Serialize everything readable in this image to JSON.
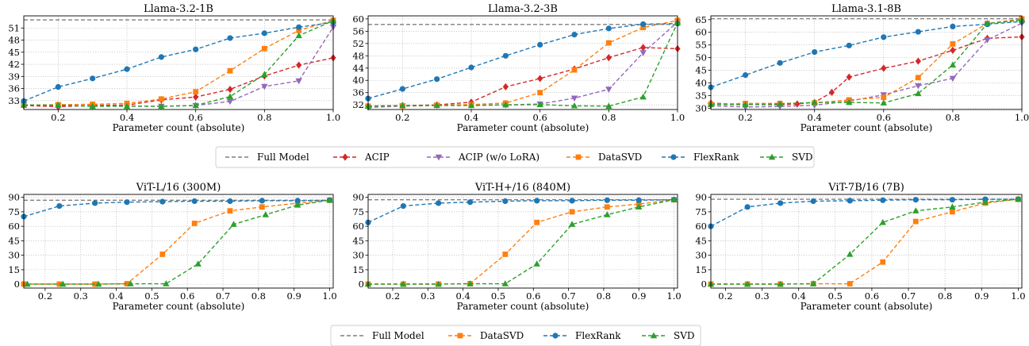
{
  "colors": {
    "full_model": "#7f7f7f",
    "acip": "#d62728",
    "acip_wo_lora": "#9467bd",
    "datasvd": "#ff7f0e",
    "flexrank": "#1f77b4",
    "svd": "#2ca02c"
  },
  "legends": [
    {
      "position": "below-top-row",
      "entries": [
        {
          "key": "full_model",
          "label": "Full Model"
        },
        {
          "key": "acip",
          "label": "ACIP"
        },
        {
          "key": "acip_wo_lora",
          "label": "ACIP (w/o LoRA)"
        },
        {
          "key": "datasvd",
          "label": "DataSVD"
        },
        {
          "key": "flexrank",
          "label": "FlexRank"
        },
        {
          "key": "svd",
          "label": "SVD"
        }
      ]
    },
    {
      "position": "below-bottom-row",
      "entries": [
        {
          "key": "full_model",
          "label": "Full Model"
        },
        {
          "key": "datasvd",
          "label": "DataSVD"
        },
        {
          "key": "flexrank",
          "label": "FlexRank"
        },
        {
          "key": "svd",
          "label": "SVD"
        }
      ]
    }
  ],
  "chart_data": [
    {
      "type": "line",
      "title": "Llama-3.2-1B",
      "xlabel": "Parameter count (absolute)",
      "ylabel": "",
      "xlim": [
        0.1,
        1.0
      ],
      "ylim": [
        30.8,
        54
      ],
      "grid": true,
      "xticks": [
        0.2,
        0.4,
        0.6,
        0.8,
        1.0
      ],
      "xtick_labels": [
        "0.2",
        "0.4",
        "0.6",
        "0.8",
        "1.0"
      ],
      "yticks": [
        33,
        36,
        39,
        42,
        45,
        48,
        51
      ],
      "ytick_labels": [
        "33",
        "36",
        "39",
        "42",
        "45",
        "48",
        "51"
      ],
      "full_model": 53.0,
      "series": [
        {
          "key": "acip",
          "name": "ACIP",
          "x": [
            0.1,
            0.2,
            0.3,
            0.4,
            0.5,
            0.6,
            0.7,
            0.8,
            0.9,
            1.0
          ],
          "y": [
            31.8,
            31.5,
            31.8,
            31.9,
            33.2,
            33.9,
            35.8,
            39.1,
            41.8,
            43.6
          ]
        },
        {
          "key": "acip_wo_lora",
          "name": "ACIP (w/o LoRA)",
          "x": [
            0.1,
            0.2,
            0.3,
            0.4,
            0.5,
            0.6,
            0.7,
            0.8,
            0.9,
            1.0
          ],
          "y": [
            32.0,
            31.8,
            31.6,
            31.7,
            31.6,
            31.8,
            32.8,
            36.5,
            37.9,
            51.2
          ]
        },
        {
          "key": "datasvd",
          "name": "DataSVD",
          "x": [
            0.1,
            0.2,
            0.3,
            0.4,
            0.5,
            0.6,
            0.7,
            0.8,
            0.9,
            1.0
          ],
          "y": [
            31.9,
            32.0,
            32.1,
            32.3,
            33.4,
            35.2,
            40.4,
            45.9,
            50.4,
            52.9
          ]
        },
        {
          "key": "flexrank",
          "name": "FlexRank",
          "x": [
            0.1,
            0.2,
            0.3,
            0.4,
            0.5,
            0.6,
            0.7,
            0.8,
            0.9,
            1.0
          ],
          "y": [
            32.9,
            36.4,
            38.5,
            40.8,
            43.8,
            45.7,
            48.5,
            49.7,
            51.2,
            52.4
          ]
        },
        {
          "key": "svd",
          "name": "SVD",
          "x": [
            0.1,
            0.2,
            0.3,
            0.4,
            0.5,
            0.6,
            0.7,
            0.8,
            0.9,
            1.0
          ],
          "y": [
            31.9,
            31.9,
            31.6,
            31.6,
            31.6,
            31.8,
            34.0,
            39.5,
            49.1,
            52.8
          ]
        }
      ]
    },
    {
      "type": "line",
      "title": "Llama-3.2-3B",
      "xlabel": "Parameter count (absolute)",
      "ylabel": "",
      "xlim": [
        0.1,
        1.0
      ],
      "ylim": [
        30.5,
        61
      ],
      "grid": true,
      "xticks": [
        0.2,
        0.4,
        0.6,
        0.8,
        1.0
      ],
      "xtick_labels": [
        "0.2",
        "0.4",
        "0.6",
        "0.8",
        "1.0"
      ],
      "yticks": [
        32,
        36,
        40,
        44,
        48,
        52,
        56,
        60
      ],
      "ytick_labels": [
        "32",
        "36",
        "40",
        "44",
        "48",
        "52",
        "56",
        "60"
      ],
      "full_model": 58.2,
      "series": [
        {
          "key": "acip",
          "name": "ACIP",
          "x": [
            0.1,
            0.2,
            0.3,
            0.4,
            0.5,
            0.6,
            0.7,
            0.8,
            0.9,
            1.0
          ],
          "y": [
            31.5,
            31.8,
            32.0,
            32.9,
            37.9,
            40.6,
            43.7,
            47.4,
            50.7,
            50.3
          ]
        },
        {
          "key": "acip_wo_lora",
          "name": "ACIP (w/o LoRA)",
          "x": [
            0.1,
            0.2,
            0.3,
            0.4,
            0.5,
            0.6,
            0.7,
            0.8,
            0.9,
            1.0
          ],
          "y": [
            31.2,
            31.6,
            31.8,
            31.9,
            32.0,
            32.3,
            34.2,
            37.1,
            49.0,
            59.0
          ]
        },
        {
          "key": "datasvd",
          "name": "DataSVD",
          "x": [
            0.1,
            0.2,
            0.3,
            0.4,
            0.5,
            0.6,
            0.7,
            0.8,
            0.9,
            1.0
          ],
          "y": [
            31.6,
            31.7,
            31.9,
            32.1,
            32.6,
            36.0,
            43.4,
            52.2,
            57.2,
            59.5
          ]
        },
        {
          "key": "flexrank",
          "name": "FlexRank",
          "x": [
            0.1,
            0.2,
            0.3,
            0.4,
            0.5,
            0.6,
            0.7,
            0.8,
            0.9,
            1.0
          ],
          "y": [
            34.1,
            37.2,
            40.4,
            44.2,
            48.0,
            51.6,
            54.9,
            56.9,
            58.3,
            58.5
          ]
        },
        {
          "key": "svd",
          "name": "SVD",
          "x": [
            0.1,
            0.2,
            0.3,
            0.4,
            0.5,
            0.6,
            0.7,
            0.8,
            0.9,
            1.0
          ],
          "y": [
            31.6,
            31.8,
            31.8,
            31.8,
            32.0,
            32.1,
            31.7,
            31.6,
            34.6,
            58.8
          ]
        }
      ]
    },
    {
      "type": "line",
      "title": "Llama-3.1-8B",
      "xlabel": "Parameter count (absolute)",
      "ylabel": "",
      "xlim": [
        0.1,
        1.0
      ],
      "ylim": [
        29.5,
        66.5
      ],
      "grid": true,
      "xticks": [
        0.2,
        0.4,
        0.6,
        0.8,
        1.0
      ],
      "xtick_labels": [
        "0.2",
        "0.4",
        "0.6",
        "0.8",
        "1.0"
      ],
      "yticks": [
        30,
        35,
        40,
        45,
        50,
        55,
        60,
        65
      ],
      "ytick_labels": [
        "30",
        "35",
        "40",
        "45",
        "50",
        "55",
        "60",
        "65"
      ],
      "full_model": 65.4,
      "series": [
        {
          "key": "acip",
          "name": "ACIP",
          "x": [
            0.1,
            0.2,
            0.3,
            0.35,
            0.4,
            0.45,
            0.5,
            0.6,
            0.7,
            0.8,
            0.9,
            1.0
          ],
          "y": [
            32.0,
            31.5,
            31.4,
            31.7,
            32.3,
            36.3,
            42.3,
            45.8,
            48.6,
            52.9,
            57.6,
            58.2
          ]
        },
        {
          "key": "acip_wo_lora",
          "name": "ACIP (w/o LoRA)",
          "x": [
            0.1,
            0.2,
            0.3,
            0.4,
            0.5,
            0.6,
            0.7,
            0.8,
            0.9,
            1.0
          ],
          "y": [
            31.0,
            30.5,
            30.7,
            31.2,
            32.8,
            35.3,
            38.9,
            41.8,
            57.0,
            63.6
          ]
        },
        {
          "key": "datasvd",
          "name": "DataSVD",
          "x": [
            0.1,
            0.2,
            0.3,
            0.4,
            0.5,
            0.6,
            0.7,
            0.8,
            0.9,
            1.0
          ],
          "y": [
            31.6,
            31.9,
            31.9,
            32.1,
            33.3,
            34.3,
            42.1,
            55.4,
            63.5,
            65.3
          ]
        },
        {
          "key": "flexrank",
          "name": "FlexRank",
          "x": [
            0.1,
            0.2,
            0.3,
            0.4,
            0.5,
            0.6,
            0.7,
            0.8,
            0.9,
            1.0
          ],
          "y": [
            38.3,
            43.1,
            47.9,
            52.2,
            54.8,
            58.1,
            60.2,
            62.3,
            63.2,
            64.3
          ]
        },
        {
          "key": "svd",
          "name": "SVD",
          "x": [
            0.1,
            0.2,
            0.3,
            0.4,
            0.5,
            0.6,
            0.7,
            0.8,
            0.9,
            1.0
          ],
          "y": [
            31.5,
            31.4,
            31.7,
            32.3,
            32.3,
            32.1,
            35.8,
            47.1,
            63.5,
            64.8
          ]
        }
      ]
    },
    {
      "type": "line",
      "title": "ViT-L/16 (300M)",
      "xlabel": "Parameter count (absolute)",
      "ylabel": "",
      "xlim": [
        0.14,
        1.01
      ],
      "ylim": [
        -4,
        93
      ],
      "grid": true,
      "xticks": [
        0.2,
        0.3,
        0.4,
        0.5,
        0.6,
        0.7,
        0.8,
        0.9,
        1.0
      ],
      "xtick_labels": [
        "0.2",
        "0.3",
        "0.4",
        "0.5",
        "0.6",
        "0.7",
        "0.8",
        "0.9",
        "1.0"
      ],
      "yticks": [
        0,
        15,
        30,
        45,
        60,
        75,
        90
      ],
      "ytick_labels": [
        "0",
        "15",
        "30",
        "45",
        "60",
        "75",
        "90"
      ],
      "full_model": 87.0,
      "series": [
        {
          "key": "datasvd",
          "name": "DataSVD",
          "x": [
            0.14,
            0.24,
            0.34,
            0.43,
            0.53,
            0.62,
            0.72,
            0.81,
            0.91,
            1.0
          ],
          "y": [
            0.1,
            0.1,
            0.1,
            0.5,
            31.0,
            63.0,
            76.0,
            80.0,
            84.0,
            87.0
          ]
        },
        {
          "key": "flexrank",
          "name": "FlexRank",
          "x": [
            0.14,
            0.24,
            0.34,
            0.43,
            0.53,
            0.62,
            0.72,
            0.81,
            0.91,
            1.0
          ],
          "y": [
            70.0,
            81.0,
            84.0,
            85.0,
            85.5,
            86.0,
            86.0,
            86.5,
            86.5,
            87.0
          ]
        },
        {
          "key": "svd",
          "name": "SVD",
          "x": [
            0.15,
            0.25,
            0.35,
            0.44,
            0.54,
            0.63,
            0.73,
            0.82,
            0.91,
            1.0
          ],
          "y": [
            0.1,
            0.1,
            0.1,
            0.5,
            0.5,
            21.0,
            62.0,
            72.0,
            82.0,
            87.0
          ]
        }
      ]
    },
    {
      "type": "line",
      "title": "ViT-H+/16 (840M)",
      "xlabel": "Parameter count (absolute)",
      "ylabel": "",
      "xlim": [
        0.13,
        1.01
      ],
      "ylim": [
        -4,
        93
      ],
      "grid": true,
      "xticks": [
        0.2,
        0.3,
        0.4,
        0.5,
        0.6,
        0.7,
        0.8,
        0.9,
        1.0
      ],
      "xtick_labels": [
        "0.2",
        "0.3",
        "0.4",
        "0.5",
        "0.6",
        "0.7",
        "0.8",
        "0.9",
        "1.0"
      ],
      "yticks": [
        0,
        15,
        30,
        45,
        60,
        75,
        90
      ],
      "ytick_labels": [
        "0",
        "15",
        "30",
        "45",
        "60",
        "75",
        "90"
      ],
      "full_model": 87.5,
      "series": [
        {
          "key": "datasvd",
          "name": "DataSVD",
          "x": [
            0.13,
            0.23,
            0.33,
            0.42,
            0.52,
            0.61,
            0.71,
            0.81,
            0.9,
            1.0
          ],
          "y": [
            0.1,
            0.1,
            0.1,
            0.5,
            31.0,
            64.0,
            75.0,
            80.0,
            83.0,
            87.5
          ]
        },
        {
          "key": "flexrank",
          "name": "FlexRank",
          "x": [
            0.13,
            0.23,
            0.33,
            0.42,
            0.52,
            0.61,
            0.71,
            0.81,
            0.9,
            1.0
          ],
          "y": [
            64.0,
            81.0,
            84.0,
            85.0,
            86.0,
            86.5,
            86.5,
            87.0,
            87.0,
            87.5
          ]
        },
        {
          "key": "svd",
          "name": "SVD",
          "x": [
            0.13,
            0.23,
            0.33,
            0.42,
            0.52,
            0.61,
            0.71,
            0.81,
            0.9,
            1.0
          ],
          "y": [
            0.1,
            0.1,
            0.1,
            0.5,
            0.5,
            21.0,
            62.0,
            72.0,
            80.0,
            87.5
          ]
        }
      ]
    },
    {
      "type": "line",
      "title": "ViT-7B/16 (7B)",
      "xlabel": "Parameter count (absolute)",
      "ylabel": "",
      "xlim": [
        0.16,
        1.01
      ],
      "ylim": [
        -4,
        93
      ],
      "grid": true,
      "xticks": [
        0.2,
        0.3,
        0.4,
        0.5,
        0.6,
        0.7,
        0.8,
        0.9,
        1.0
      ],
      "xtick_labels": [
        "0.2",
        "0.3",
        "0.4",
        "0.5",
        "0.6",
        "0.7",
        "0.8",
        "0.9",
        "1.0"
      ],
      "yticks": [
        0,
        15,
        30,
        45,
        60,
        75,
        90
      ],
      "ytick_labels": [
        "0",
        "15",
        "30",
        "45",
        "60",
        "75",
        "90"
      ],
      "full_model": 88.0,
      "series": [
        {
          "key": "datasvd",
          "name": "DataSVD",
          "x": [
            0.16,
            0.26,
            0.35,
            0.44,
            0.54,
            0.63,
            0.72,
            0.82,
            0.91,
            1.0
          ],
          "y": [
            0.1,
            0.1,
            0.1,
            0.5,
            0.5,
            23.0,
            65.0,
            75.0,
            84.0,
            88.0
          ]
        },
        {
          "key": "flexrank",
          "name": "FlexRank",
          "x": [
            0.16,
            0.26,
            0.35,
            0.44,
            0.54,
            0.63,
            0.72,
            0.82,
            0.91,
            1.0
          ],
          "y": [
            60.0,
            80.0,
            84.0,
            86.0,
            86.5,
            87.0,
            87.5,
            87.5,
            88.0,
            88.0
          ]
        },
        {
          "key": "svd",
          "name": "SVD",
          "x": [
            0.16,
            0.26,
            0.35,
            0.44,
            0.54,
            0.63,
            0.72,
            0.82,
            0.91,
            1.0
          ],
          "y": [
            0.1,
            0.1,
            0.1,
            0.5,
            31.0,
            64.0,
            76.0,
            80.0,
            85.0,
            88.0
          ]
        }
      ]
    }
  ]
}
